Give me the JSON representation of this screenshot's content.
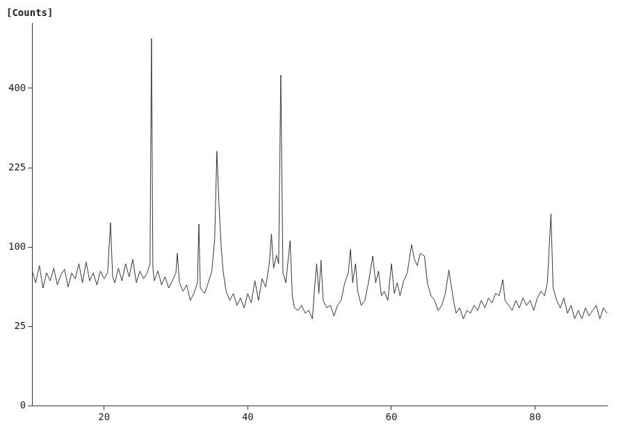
{
  "chart_data": {
    "type": "line",
    "y_label": "[Counts]",
    "color": "#333333",
    "grid": false,
    "xlim": [
      10,
      90
    ],
    "xticks": [
      20,
      40,
      60,
      80
    ],
    "ylim": [
      0,
      580
    ],
    "yticks": [
      0,
      25,
      100,
      225,
      400
    ],
    "x": [
      10,
      10.5,
      11,
      11.5,
      12,
      12.5,
      13,
      13.5,
      14,
      14.5,
      15,
      15.5,
      16,
      16.5,
      17,
      17.5,
      18,
      18.5,
      19,
      19.5,
      20,
      20.5,
      20.9,
      21.2,
      21.5,
      22,
      22.5,
      23,
      23.5,
      24,
      24.5,
      25,
      25.5,
      26,
      26.4,
      26.6,
      26.8,
      27,
      27.5,
      28,
      28.5,
      29,
      29.5,
      30,
      30.2,
      30.5,
      31,
      31.5,
      32,
      32.5,
      33,
      33.2,
      33.4,
      34,
      34.5,
      35,
      35.4,
      35.7,
      36.0,
      36.3,
      36.6,
      37,
      37.5,
      38,
      38.5,
      39,
      39.5,
      40,
      40.5,
      41,
      41.5,
      42,
      42.5,
      43,
      43.3,
      43.6,
      44,
      44.3,
      44.6,
      44.9,
      45.3,
      45.9,
      46.2,
      46.5,
      47,
      47.5,
      48,
      48.5,
      49,
      49.3,
      49.6,
      49.9,
      50.2,
      50.5,
      51,
      51.5,
      52,
      52.5,
      53,
      53.5,
      54,
      54.3,
      54.6,
      55,
      55.3,
      55.8,
      56.3,
      56.8,
      57.4,
      57.8,
      58.2,
      58.6,
      59,
      59.5,
      60,
      60.4,
      60.8,
      61.2,
      61.7,
      62.2,
      62.8,
      63.2,
      63.6,
      64,
      64.6,
      65,
      65.5,
      66,
      66.5,
      67,
      67.5,
      68,
      68.3,
      68.7,
      69,
      69.5,
      70,
      70.5,
      71,
      71.5,
      72,
      72.5,
      73,
      73.5,
      74,
      74.5,
      75,
      75.5,
      75.8,
      76.3,
      76.8,
      77.3,
      77.8,
      78.3,
      78.8,
      79.3,
      79.8,
      80.3,
      80.8,
      81.3,
      81.7,
      82.2,
      82.5,
      83,
      83.5,
      84,
      84.5,
      85,
      85.5,
      86,
      86.5,
      87,
      87.5,
      88,
      88.5,
      89,
      89.5,
      90
    ],
    "values": [
      72,
      60,
      78,
      55,
      70,
      62,
      75,
      58,
      68,
      74,
      56,
      70,
      64,
      80,
      60,
      82,
      62,
      70,
      58,
      72,
      64,
      70,
      133,
      66,
      60,
      75,
      62,
      80,
      66,
      85,
      60,
      72,
      64,
      70,
      80,
      535,
      75,
      62,
      72,
      58,
      66,
      55,
      62,
      70,
      92,
      60,
      52,
      58,
      44,
      50,
      60,
      131,
      55,
      50,
      60,
      72,
      110,
      257,
      160,
      100,
      70,
      52,
      44,
      50,
      40,
      46,
      38,
      50,
      42,
      62,
      44,
      64,
      56,
      80,
      117,
      75,
      90,
      80,
      434,
      70,
      60,
      108,
      48,
      38,
      36,
      40,
      34,
      36,
      30,
      55,
      80,
      50,
      84,
      44,
      38,
      40,
      32,
      40,
      44,
      60,
      70,
      97,
      60,
      80,
      52,
      40,
      44,
      60,
      89,
      60,
      72,
      48,
      52,
      44,
      80,
      50,
      60,
      48,
      62,
      70,
      103,
      85,
      78,
      92,
      89,
      60,
      48,
      44,
      36,
      40,
      50,
      73,
      58,
      42,
      34,
      38,
      30,
      36,
      34,
      40,
      36,
      44,
      38,
      46,
      42,
      50,
      48,
      63,
      44,
      40,
      36,
      44,
      38,
      46,
      40,
      44,
      36,
      46,
      52,
      48,
      60,
      146,
      55,
      44,
      38,
      46,
      34,
      40,
      30,
      36,
      30,
      38,
      32,
      36,
      40,
      30,
      38,
      34
    ]
  }
}
